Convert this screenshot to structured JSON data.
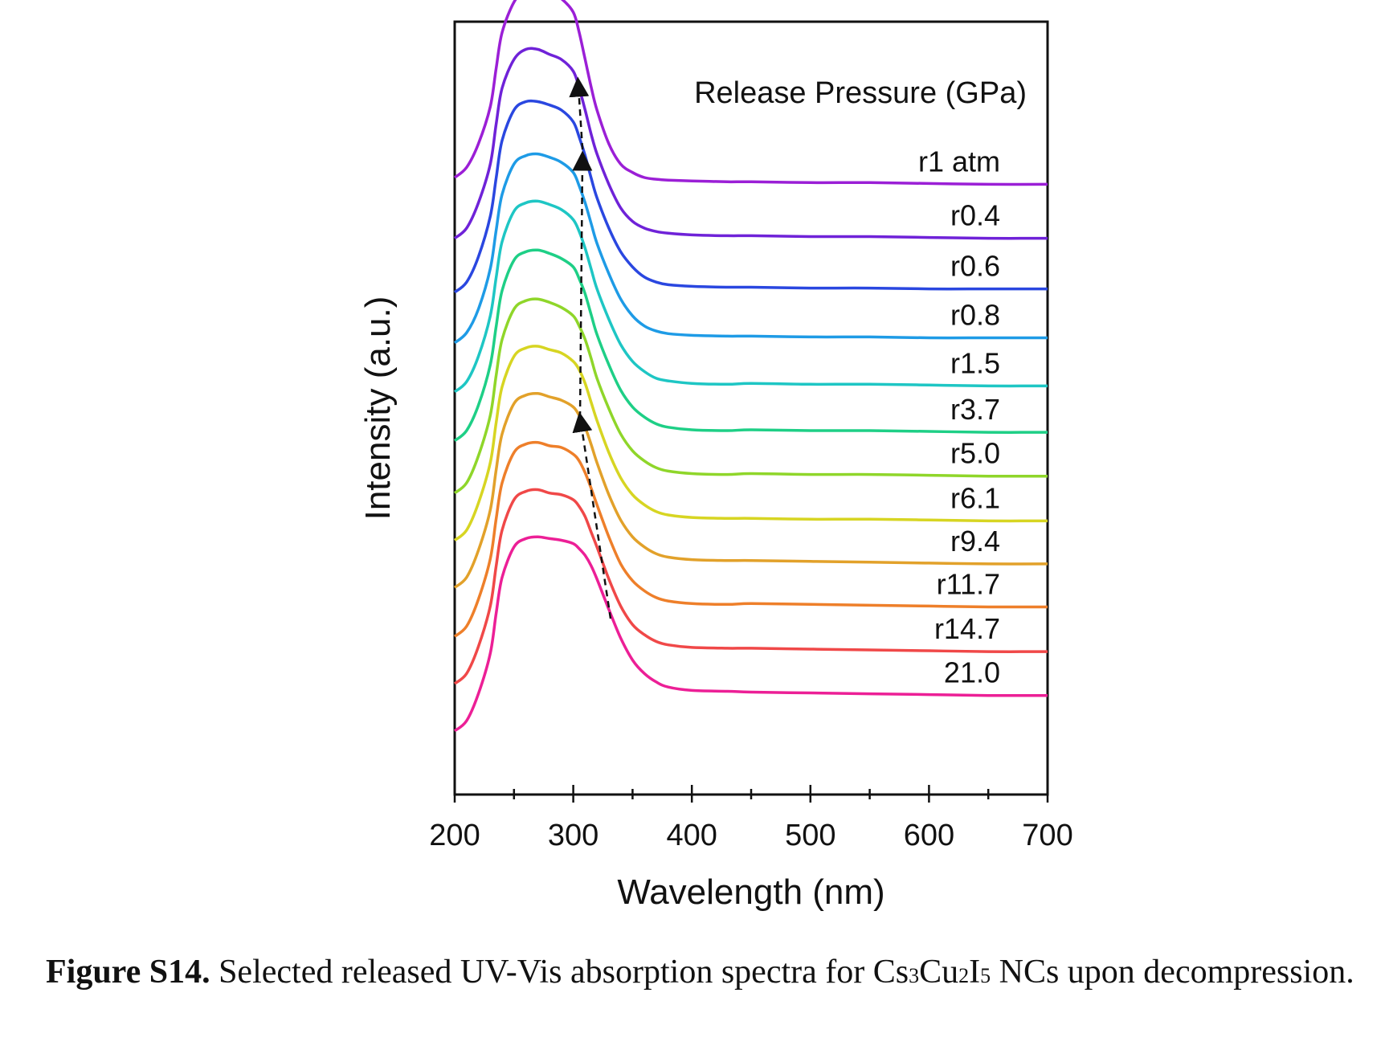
{
  "chart_data": {
    "type": "line",
    "xlabel": "Wavelength (nm)",
    "ylabel": "Intensity (a.u.)",
    "xlim": [
      200,
      700
    ],
    "xticks": [
      "200",
      "300",
      "400",
      "500",
      "600",
      "700"
    ],
    "legend_title": "Release Pressure (GPa)",
    "y_ticks_shown": false,
    "grid": false,
    "x": [
      200,
      210,
      220,
      230,
      235,
      240,
      250,
      260,
      270,
      280,
      290,
      300,
      305,
      310,
      315,
      320,
      330,
      340,
      350,
      360,
      370,
      380,
      400,
      430,
      450,
      500,
      550,
      600,
      650,
      700
    ],
    "series": [
      {
        "name": "r1 atm",
        "color": "#9b1fd6",
        "label_offset": 0,
        "values": [
          0.6,
          0.66,
          0.8,
          1.02,
          1.25,
          1.46,
          1.64,
          1.71,
          1.73,
          1.7,
          1.66,
          1.58,
          1.46,
          1.3,
          1.14,
          1.0,
          0.8,
          0.68,
          0.63,
          0.6,
          0.59,
          0.585,
          0.58,
          0.575,
          0.575,
          0.57,
          0.57,
          0.565,
          0.56,
          0.56
        ]
      },
      {
        "name": "r0.4",
        "color": "#6f22d8",
        "values": [
          0.54,
          0.6,
          0.75,
          0.98,
          1.22,
          1.43,
          1.6,
          1.66,
          1.66,
          1.63,
          1.6,
          1.53,
          1.43,
          1.3,
          1.16,
          1.04,
          0.86,
          0.72,
          0.64,
          0.6,
          0.58,
          0.57,
          0.56,
          0.555,
          0.555,
          0.55,
          0.55,
          0.545,
          0.54,
          0.54
        ]
      },
      {
        "name": "r0.6",
        "color": "#2a47e0",
        "values": [
          0.52,
          0.58,
          0.73,
          0.97,
          1.2,
          1.42,
          1.6,
          1.65,
          1.65,
          1.63,
          1.6,
          1.53,
          1.44,
          1.33,
          1.2,
          1.08,
          0.9,
          0.76,
          0.67,
          0.61,
          0.58,
          0.565,
          0.555,
          0.55,
          0.55,
          0.545,
          0.545,
          0.54,
          0.54,
          0.54
        ]
      },
      {
        "name": "r0.8",
        "color": "#1e9be6",
        "values": [
          0.52,
          0.58,
          0.72,
          0.96,
          1.19,
          1.4,
          1.58,
          1.63,
          1.64,
          1.62,
          1.59,
          1.53,
          1.45,
          1.35,
          1.23,
          1.11,
          0.93,
          0.78,
          0.68,
          0.62,
          0.59,
          0.575,
          0.565,
          0.56,
          0.56,
          0.555,
          0.555,
          0.55,
          0.55,
          0.55
        ]
      },
      {
        "name": "r1.5",
        "color": "#1ec6c4",
        "values": [
          0.53,
          0.59,
          0.74,
          0.98,
          1.21,
          1.42,
          1.6,
          1.65,
          1.66,
          1.64,
          1.61,
          1.55,
          1.48,
          1.38,
          1.26,
          1.14,
          0.96,
          0.81,
          0.71,
          0.65,
          0.61,
          0.595,
          0.58,
          0.575,
          0.58,
          0.575,
          0.575,
          0.57,
          0.565,
          0.565
        ]
      },
      {
        "name": "r3.7",
        "color": "#1ecf86",
        "values": [
          0.54,
          0.6,
          0.75,
          0.99,
          1.22,
          1.43,
          1.61,
          1.66,
          1.67,
          1.65,
          1.62,
          1.57,
          1.5,
          1.41,
          1.29,
          1.17,
          0.99,
          0.84,
          0.74,
          0.68,
          0.64,
          0.62,
          0.605,
          0.6,
          0.605,
          0.6,
          0.6,
          0.595,
          0.59,
          0.59
        ]
      },
      {
        "name": "r5.0",
        "color": "#8fd62a",
        "values": [
          0.53,
          0.59,
          0.75,
          0.99,
          1.23,
          1.44,
          1.62,
          1.67,
          1.68,
          1.66,
          1.63,
          1.58,
          1.52,
          1.44,
          1.33,
          1.21,
          1.03,
          0.88,
          0.78,
          0.72,
          0.68,
          0.66,
          0.645,
          0.64,
          0.645,
          0.64,
          0.64,
          0.635,
          0.63,
          0.63
        ]
      },
      {
        "name": "r6.1",
        "color": "#d7d522",
        "values": [
          0.55,
          0.61,
          0.77,
          1.01,
          1.25,
          1.46,
          1.64,
          1.69,
          1.7,
          1.68,
          1.66,
          1.61,
          1.56,
          1.48,
          1.37,
          1.26,
          1.07,
          0.92,
          0.82,
          0.76,
          0.72,
          0.7,
          0.685,
          0.68,
          0.68,
          0.675,
          0.675,
          0.67,
          0.665,
          0.665
        ]
      },
      {
        "name": "r9.4",
        "color": "#e2a12a",
        "values": [
          0.57,
          0.63,
          0.79,
          1.03,
          1.27,
          1.48,
          1.66,
          1.71,
          1.72,
          1.7,
          1.68,
          1.64,
          1.59,
          1.52,
          1.42,
          1.31,
          1.12,
          0.97,
          0.87,
          0.81,
          0.77,
          0.75,
          0.735,
          0.73,
          0.73,
          0.725,
          0.72,
          0.715,
          0.71,
          0.71
        ]
      },
      {
        "name": "r11.7",
        "color": "#ee7f2a",
        "values": [
          0.58,
          0.64,
          0.8,
          1.04,
          1.28,
          1.49,
          1.67,
          1.72,
          1.73,
          1.71,
          1.7,
          1.66,
          1.62,
          1.55,
          1.46,
          1.36,
          1.17,
          1.01,
          0.91,
          0.85,
          0.81,
          0.79,
          0.775,
          0.77,
          0.775,
          0.77,
          0.765,
          0.76,
          0.755,
          0.755
        ]
      },
      {
        "name": "r14.7",
        "color": "#f04848",
        "values": [
          0.6,
          0.66,
          0.82,
          1.06,
          1.3,
          1.51,
          1.69,
          1.74,
          1.75,
          1.73,
          1.72,
          1.69,
          1.65,
          1.59,
          1.5,
          1.41,
          1.22,
          1.06,
          0.95,
          0.89,
          0.85,
          0.83,
          0.815,
          0.81,
          0.81,
          0.805,
          0.8,
          0.795,
          0.79,
          0.79
        ]
      },
      {
        "name": "21.0",
        "color": "#ec1f96",
        "values": [
          0.62,
          0.68,
          0.84,
          1.08,
          1.32,
          1.53,
          1.71,
          1.76,
          1.77,
          1.76,
          1.75,
          1.73,
          1.7,
          1.66,
          1.6,
          1.52,
          1.34,
          1.17,
          1.04,
          0.96,
          0.91,
          0.88,
          0.86,
          0.855,
          0.85,
          0.845,
          0.84,
          0.835,
          0.83,
          0.83
        ]
      }
    ],
    "arrow_points": [
      [
        333,
        0
      ],
      [
        305,
        1
      ],
      [
        310,
        2
      ],
      [
        305,
        3
      ]
    ]
  },
  "caption": {
    "label": "Figure S14.",
    "text_before": " Selected released UV-Vis absorption spectra for Cs",
    "sub1": "3",
    "mid1": "Cu",
    "sub2": "2",
    "mid2": "I",
    "sub3": "5",
    "text_after": " NCs upon decompression."
  }
}
